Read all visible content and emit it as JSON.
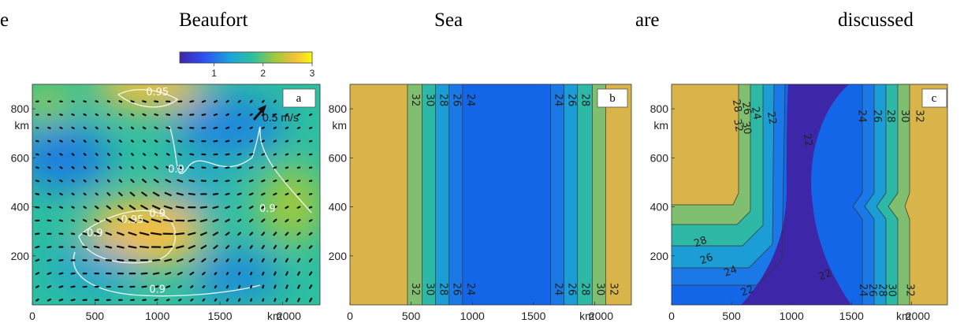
{
  "text_line": {
    "words": [
      "e",
      "Beaufort",
      "Sea",
      "are",
      "discussed"
    ]
  },
  "colorbar": {
    "ticks": [
      1,
      2,
      3
    ],
    "range": [
      0.3,
      3
    ],
    "colors": [
      "#3e26a8",
      "#2f4ef3",
      "#1aa3d9",
      "#2ebfa0",
      "#9fc93d",
      "#f4c03b",
      "#f8fa0d"
    ]
  },
  "chart_data": [
    {
      "type": "vector-field-heatmap",
      "panel_label": "a",
      "xlabel": "km",
      "ylabel": "km",
      "xlim": [
        0,
        2300
      ],
      "ylim": [
        0,
        900
      ],
      "x_ticks": [
        0,
        500,
        1000,
        1500,
        2000
      ],
      "y_ticks": [
        200,
        400,
        600,
        800
      ],
      "reference_arrow_label": "0.5 m/s",
      "contours": [
        {
          "label": "0.95",
          "x": 1000,
          "y": 855
        },
        {
          "label": "0.9",
          "x": 1150,
          "y": 540
        },
        {
          "label": "0.9",
          "x": 1880,
          "y": 380
        },
        {
          "label": "0.95",
          "x": 800,
          "y": 335
        },
        {
          "label": "0.9",
          "x": 1000,
          "y": 360
        },
        {
          "label": "0.9",
          "x": 500,
          "y": 280
        },
        {
          "label": "0.9",
          "x": 1000,
          "y": 50
        }
      ]
    },
    {
      "type": "contour",
      "panel_label": "b",
      "xlabel": "km",
      "ylabel": "km",
      "xlim": [
        0,
        2300
      ],
      "ylim": [
        0,
        900
      ],
      "x_ticks": [
        0,
        500,
        1000,
        1500,
        2000
      ],
      "y_ticks": [
        200,
        400,
        600,
        800
      ],
      "levels": [
        32,
        30,
        28,
        26,
        24
      ],
      "left_boundaries": [
        470,
        590,
        700,
        810,
        920
      ],
      "right_boundaries": [
        1640,
        1750,
        1860,
        1980,
        2090
      ],
      "band_colors": [
        "#d9b44a",
        "#7fbf6f",
        "#2eb8a6",
        "#1c9dd6",
        "#1a79e6",
        "#1366e8"
      ]
    },
    {
      "type": "contour",
      "panel_label": "c",
      "xlabel": "km",
      "ylabel": "km",
      "xlim": [
        0,
        2300
      ],
      "ylim": [
        0,
        900
      ],
      "x_ticks": [
        0,
        500,
        1000,
        1500,
        2000
      ],
      "y_ticks": [
        200,
        400,
        600,
        800
      ],
      "contour_labels": [
        {
          "label": "32",
          "x": 530,
          "y": 730
        },
        {
          "label": "30",
          "x": 600,
          "y": 720
        },
        {
          "label": "28",
          "x": 520,
          "y": 810
        },
        {
          "label": "26",
          "x": 600,
          "y": 800
        },
        {
          "label": "24",
          "x": 680,
          "y": 780
        },
        {
          "label": "22",
          "x": 810,
          "y": 760
        },
        {
          "label": "22",
          "x": 1110,
          "y": 670
        },
        {
          "label": "28",
          "x": 250,
          "y": 245
        },
        {
          "label": "26",
          "x": 300,
          "y": 175
        },
        {
          "label": "24",
          "x": 500,
          "y": 125
        },
        {
          "label": "22",
          "x": 640,
          "y": 45
        },
        {
          "label": "22",
          "x": 1290,
          "y": 110
        },
        {
          "label": "24",
          "x": 1560,
          "y": 770
        },
        {
          "label": "26",
          "x": 1690,
          "y": 770
        },
        {
          "label": "28",
          "x": 1800,
          "y": 770
        },
        {
          "label": "30",
          "x": 1920,
          "y": 770
        },
        {
          "label": "32",
          "x": 2040,
          "y": 770
        },
        {
          "label": "24",
          "x": 1570,
          "y": 60
        },
        {
          "label": "26",
          "x": 1650,
          "y": 60
        },
        {
          "label": "28",
          "x": 1730,
          "y": 60
        },
        {
          "label": "30",
          "x": 1810,
          "y": 60
        },
        {
          "label": "32",
          "x": 1960,
          "y": 60
        }
      ]
    }
  ]
}
